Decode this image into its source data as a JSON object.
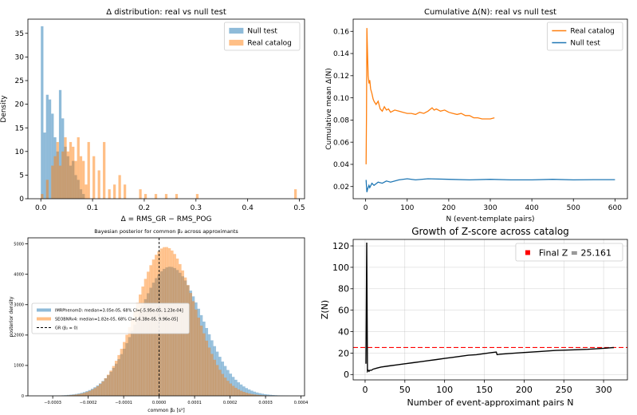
{
  "chart_data": [
    {
      "type": "histogram",
      "title": "Δ distribution: real vs null test",
      "xlabel": "Δ = RMS_GR − RMS_POG",
      "ylabel": "Density",
      "xlim": [
        -0.025,
        0.51
      ],
      "ylim": [
        0,
        38
      ],
      "xticks": [
        "0.0",
        "0.1",
        "0.2",
        "0.3",
        "0.4",
        "0.5"
      ],
      "yticks": [
        "0",
        "5",
        "10",
        "15",
        "20",
        "25",
        "30",
        "35"
      ],
      "legend_position": "top-right",
      "bin_width": 0.005,
      "series": [
        {
          "name": "Null test",
          "color": "#1f77b4",
          "x": [
            0.0,
            0.005,
            0.01,
            0.015,
            0.02,
            0.025,
            0.03,
            0.035,
            0.04,
            0.045,
            0.05,
            0.055,
            0.06,
            0.065,
            0.07,
            0.075,
            0.08
          ],
          "values": [
            36.5,
            14,
            22,
            21,
            18,
            13,
            10,
            23,
            17,
            11,
            9,
            7,
            8,
            5,
            4,
            2,
            1
          ]
        },
        {
          "name": "Real catalog",
          "color": "#ff7f0e",
          "x": [
            0.0,
            0.01,
            0.02,
            0.025,
            0.03,
            0.035,
            0.04,
            0.045,
            0.05,
            0.055,
            0.06,
            0.065,
            0.07,
            0.075,
            0.08,
            0.085,
            0.09,
            0.1,
            0.11,
            0.12,
            0.13,
            0.14,
            0.15,
            0.16,
            0.19,
            0.2,
            0.22,
            0.24,
            0.26,
            0.3,
            0.49
          ],
          "values": [
            1,
            4,
            7,
            9,
            12,
            7,
            10,
            13,
            10,
            12,
            11,
            8,
            13,
            9,
            8,
            3,
            12,
            9,
            6,
            12,
            2,
            3,
            5,
            3,
            2,
            1,
            1,
            1,
            1,
            1,
            2
          ]
        }
      ]
    },
    {
      "type": "line",
      "title": "Cumulative Δ(N): real vs null test",
      "xlabel": "N (event-template pairs)",
      "ylabel": "Cumulative mean Δ(N)",
      "xlim": [
        -30,
        630
      ],
      "ylim": [
        0.009,
        0.171
      ],
      "xticks": [
        "0",
        "100",
        "200",
        "300",
        "400",
        "500",
        "600"
      ],
      "yticks": [
        "0.02",
        "0.04",
        "0.06",
        "0.08",
        "0.10",
        "0.12",
        "0.14",
        "0.16"
      ],
      "legend_position": "top-right",
      "series": [
        {
          "name": "Real catalog",
          "color": "#ff7f0e",
          "x": [
            1,
            2,
            3,
            4,
            5,
            6,
            8,
            10,
            12,
            15,
            18,
            20,
            25,
            30,
            35,
            40,
            45,
            50,
            55,
            60,
            70,
            80,
            90,
            100,
            110,
            120,
            130,
            140,
            150,
            160,
            165,
            170,
            180,
            190,
            200,
            210,
            220,
            230,
            240,
            250,
            260,
            270,
            280,
            290,
            300,
            310
          ],
          "values": [
            0.04,
            0.085,
            0.163,
            0.148,
            0.135,
            0.12,
            0.113,
            0.116,
            0.108,
            0.104,
            0.099,
            0.097,
            0.094,
            0.097,
            0.09,
            0.088,
            0.092,
            0.089,
            0.09,
            0.087,
            0.089,
            0.088,
            0.087,
            0.086,
            0.086,
            0.085,
            0.087,
            0.086,
            0.088,
            0.091,
            0.089,
            0.09,
            0.088,
            0.089,
            0.087,
            0.086,
            0.085,
            0.086,
            0.084,
            0.084,
            0.082,
            0.082,
            0.081,
            0.081,
            0.081,
            0.082
          ]
        },
        {
          "name": "Null test",
          "color": "#1f77b4",
          "x": [
            1,
            2,
            3,
            5,
            8,
            10,
            15,
            20,
            30,
            40,
            50,
            60,
            80,
            100,
            120,
            150,
            200,
            250,
            300,
            350,
            400,
            450,
            500,
            550,
            600
          ],
          "values": [
            0.026,
            0.02,
            0.015,
            0.018,
            0.021,
            0.019,
            0.023,
            0.021,
            0.024,
            0.023,
            0.025,
            0.024,
            0.026,
            0.027,
            0.026,
            0.027,
            0.0265,
            0.026,
            0.0265,
            0.026,
            0.026,
            0.0265,
            0.026,
            0.0262,
            0.0262
          ]
        }
      ]
    },
    {
      "type": "histogram",
      "title": "Bayesian posterior for common β₂ across approximants",
      "xlabel": "common β₂ [s²]",
      "ylabel": "posterior density",
      "xlim": [
        -0.00037,
        0.00041
      ],
      "ylim": [
        0,
        5200
      ],
      "xticks": [
        "−0.0003",
        "−0.0002",
        "−0.0001",
        "0.0000",
        "0.0001",
        "0.0002",
        "0.0003",
        "0.0004"
      ],
      "yticks": [
        "0",
        "1000",
        "2000",
        "3000",
        "4000",
        "5000"
      ],
      "legend_position": "center-left",
      "series": [
        {
          "name": "IMRPhenomD: median=3.05e-05, 68% CI=[-5.95e-05, 1.23e-04]",
          "color": "#1f77b4",
          "center": 3.05e-05,
          "sigma": 9.1e-05,
          "peak": 4250
        },
        {
          "name": "SEOBNRv4: median=1.82e-05, 68% CI=[-6.38e-05, 9.96e-05]",
          "color": "#ff7f0e",
          "center": 1.82e-05,
          "sigma": 8.2e-05,
          "peak": 4900
        },
        {
          "name": "GR (β₂ = 0)",
          "color": "#000000",
          "x": 0
        }
      ]
    },
    {
      "type": "line",
      "title": "Growth of Z-score across catalog",
      "xlabel": "Number of event-approximant pairs N",
      "ylabel": "Z(N)",
      "xlim": [
        -15,
        330
      ],
      "ylim": [
        -5,
        126
      ],
      "xticks": [
        "0",
        "50",
        "100",
        "150",
        "200",
        "250",
        "300"
      ],
      "yticks": [
        "0",
        "20",
        "40",
        "60",
        "80",
        "100",
        "120"
      ],
      "legend_position": "top-right",
      "reference_line": {
        "name": "Final Z = 25.161",
        "value": 25.161,
        "color": "#ff0000"
      },
      "series": [
        {
          "name": "",
          "color": "#000000",
          "x": [
            1,
            2,
            3,
            4,
            5,
            6,
            8,
            10,
            15,
            20,
            30,
            40,
            50,
            60,
            70,
            80,
            90,
            100,
            110,
            120,
            130,
            140,
            150,
            160,
            165,
            166,
            170,
            180,
            200,
            220,
            240,
            260,
            280,
            300,
            310,
            313
          ],
          "values": [
            10,
            123,
            3,
            4,
            3,
            4,
            4,
            5,
            6,
            7,
            8,
            9,
            10,
            11,
            12,
            13,
            14,
            15,
            16,
            17,
            18,
            18.5,
            19.5,
            20.5,
            21,
            18.5,
            19,
            19.5,
            20.5,
            21.5,
            22.5,
            23,
            23.5,
            24.5,
            25,
            25.16
          ]
        }
      ]
    }
  ]
}
